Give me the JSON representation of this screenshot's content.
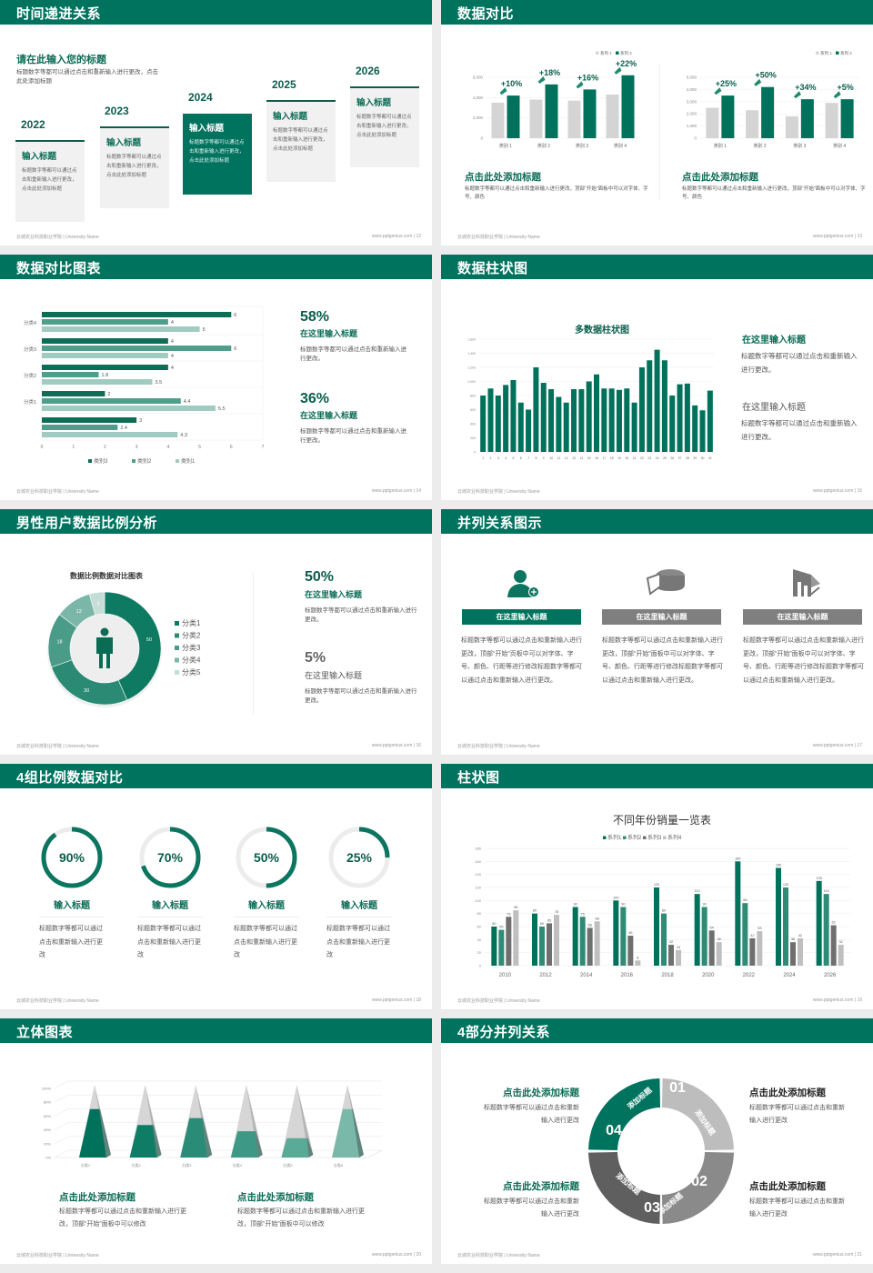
{
  "footer": {
    "left": "云城农业科技职业学院 | University Name",
    "right": "www.pptgenius.com"
  },
  "colors": {
    "brand": "#00735f",
    "dark_green": "#00715a",
    "mid_green": "#2e8b76",
    "light_green": "#8cc4b6",
    "gray": "#d4d4d4",
    "dark_gray": "#6f6f6f"
  },
  "slides": [
    {
      "title": "时间递进关系",
      "page": "12",
      "heading": "请在此输入您的标题",
      "body": "标题数字等都可以通过点击和重新输入进行更改，点击此处添加标题",
      "steps": [
        {
          "year": "2022",
          "title": "输入标题",
          "text": "标题数字等都可以通过点击和重新输入进行更改，点击此处添加标题"
        },
        {
          "year": "2023",
          "title": "输入标题",
          "text": "标题数字等都可以通过点击和重新输入进行更改，点击此处添加标题"
        },
        {
          "year": "2024",
          "title": "输入标题",
          "text": "标题数字等都可以通过点击和重新输入进行更改，点击此处添加标题"
        },
        {
          "year": "2025",
          "title": "输入标题",
          "text": "标题数字等都可以通过点击和重新输入进行更改，点击此处添加标题"
        },
        {
          "year": "2026",
          "title": "输入标题",
          "text": "标题数字等都可以通过点击和重新输入进行更改，点击此处添加标题"
        }
      ]
    },
    {
      "title": "数据对比",
      "page": "13",
      "captions": [
        {
          "title": "点击此处添加标题",
          "text": "标题数字等都可以通过点击和重新输入进行更改，顶部“开始”面板中可以对字体、字号、颜色"
        },
        {
          "title": "点击此处添加标题",
          "text": "标题数字等都可以通过点击和重新输入进行更改，顶部“开始”面板中可以对字体、字号、颜色"
        }
      ]
    },
    {
      "title": "数据对比图表",
      "page": "14",
      "stats": [
        {
          "value": "58%",
          "title": "在这里输入标题",
          "text": "标题数字等都可以通过点击和重新输入进行更改。"
        },
        {
          "value": "36%",
          "title": "在这里输入标题",
          "text": "标题数字等都可以通过点击和重新输入进行更改。"
        }
      ]
    },
    {
      "title": "数据柱状图",
      "page": "15",
      "notes": [
        {
          "title": "在这里输入标题",
          "text": "标题数字等都可以通过点击和重新输入进行更改。"
        },
        {
          "title": "在这里输入标题",
          "text": "标题数字等都可以通过点击和重新输入进行更改。"
        }
      ]
    },
    {
      "title": "男性用户数据比例分析",
      "page": "16",
      "stats": [
        {
          "value": "50%",
          "title": "在这里输入标题",
          "text": "标题数字等都可以通过点击和重新输入进行更改。"
        },
        {
          "value": "5%",
          "title": "在这里输入标题",
          "text": "标题数字等都可以通过点击和重新输入进行更改。"
        }
      ]
    },
    {
      "title": "并列关系图示",
      "page": "17",
      "columns": [
        {
          "icon": "female-user-add-icon",
          "title": "在这里输入标题",
          "text": "标题数字等都可以通过点击和重新输入进行更改，顶部“开始”页板中可以对字体、字号、颜色、行距等进行修改标题数字等都可以通过点击和重新输入进行更改。"
        },
        {
          "icon": "pie-3d-icon",
          "title": "在这里输入标题",
          "text": "标题数字等都可以通过点击和重新输入进行更改，顶部“开始”面板中可以对字体、字号、颜色、行距等进行修改标题数字等都可以通过点击和重新输入进行更改。"
        },
        {
          "icon": "building-chart-icon",
          "title": "在这里输入标题",
          "text": "标题数字等都可以通过点击和重新输入进行更改，顶部“开始”面板中可以对字体、字号、颜色、行距等进行修改标题数字等都可以通过点击和重新输入进行更改。"
        }
      ]
    },
    {
      "title": "4组比例数据对比",
      "page": "18",
      "items": [
        {
          "title": "输入标题",
          "text": "标题数字等都可以通过点击和重新输入进行更改"
        },
        {
          "title": "输入标题",
          "text": "标题数字等都可以通过点击和重新输入进行更改"
        },
        {
          "title": "输入标题",
          "text": "标题数字等都可以通过点击和重新输入进行更改"
        },
        {
          "title": "输入标题",
          "text": "标题数字等都可以通过点击和重新输入进行更改"
        }
      ]
    },
    {
      "title": "柱状图",
      "page": "19"
    },
    {
      "title": "立体图表",
      "page": "20",
      "captions": [
        {
          "title": "点击此处添加标题",
          "text": "标题数字等都可以通过点击和重新输入进行更改，顶部“开始”面板中可以修改"
        },
        {
          "title": "点击此处添加标题",
          "text": "标题数字等都可以通过点击和重新输入进行更改，顶部“开始”面板中可以修改"
        }
      ]
    },
    {
      "title": "4部分并列关系",
      "page": "21",
      "segments": [
        {
          "num": "01",
          "label": "添加标题"
        },
        {
          "num": "02",
          "label": "添加标题"
        },
        {
          "num": "03",
          "label": "添加标题"
        },
        {
          "num": "04",
          "label": "添加标题"
        }
      ],
      "blocks": [
        {
          "title": "点击此处添加标题",
          "text": "标题数字等都可以通过点击和重新输入进行更改"
        },
        {
          "title": "点击此处添加标题",
          "text": "标题数字等都可以通过点击和重新输入进行更改"
        },
        {
          "title": "点击此处添加标题",
          "text": "标题数字等都可以通过点击和重新输入进行更改"
        },
        {
          "title": "点击此处添加标题",
          "text": "标题数字等都可以通过点击和重新输入进行更改"
        }
      ]
    }
  ],
  "chart_data": [
    {
      "type": "bar",
      "categories": [
        "类别 1",
        "类别 2",
        "类别 3",
        "类别 4"
      ],
      "series": [
        {
          "name": "系列 1",
          "values": [
            3500,
            3800,
            3700,
            4300
          ],
          "color": "#d4d4d4"
        },
        {
          "name": "系列 2",
          "values": [
            4200,
            5300,
            4800,
            6200
          ],
          "color": "#00715a"
        }
      ],
      "annotations": [
        "+10%",
        "+18%",
        "+16%",
        "+22%"
      ],
      "ylim": [
        0,
        6000
      ],
      "yticks": [
        0,
        2000,
        4000,
        6000
      ],
      "ytick_labels": [
        "0",
        "2,000",
        "4,000",
        "6,000"
      ],
      "legend": "top-right"
    },
    {
      "type": "bar",
      "categories": [
        "类别 1",
        "类别 2",
        "类别 3",
        "类别 4"
      ],
      "series": [
        {
          "name": "系列 1",
          "values": [
            2500,
            2300,
            1800,
            2900
          ],
          "color": "#d4d4d4"
        },
        {
          "name": "系列 2",
          "values": [
            3500,
            4200,
            3200,
            3200
          ],
          "color": "#00715a"
        }
      ],
      "annotations": [
        "+25%",
        "+50%",
        "+34%",
        "+5%"
      ],
      "ylim": [
        0,
        5000
      ],
      "yticks": [
        0,
        1000,
        2000,
        3000,
        4000,
        5000
      ],
      "ytick_labels": [
        "0",
        "1,000",
        "2,000",
        "3,000",
        "4,000",
        "5,000"
      ],
      "legend": "top-right"
    },
    {
      "type": "bar",
      "orientation": "horizontal",
      "categories": [
        "分类4",
        "分类3",
        "分类2",
        "分类1",
        ""
      ],
      "series": [
        {
          "name": "类别3",
          "values": [
            6,
            4,
            4,
            2,
            3
          ],
          "color": "#0d6e57"
        },
        {
          "name": "类别2",
          "values": [
            4,
            6,
            1.8,
            4.4,
            2.4
          ],
          "color": "#4e9e8b"
        },
        {
          "name": "类别1",
          "values": [
            5,
            4,
            3.5,
            5.5,
            4.3
          ],
          "color": "#9fcbc0"
        }
      ],
      "xlim": [
        0,
        7
      ],
      "xticks": [
        0,
        1,
        2,
        3,
        4,
        5,
        6,
        7
      ],
      "legend": "bottom"
    },
    {
      "type": "bar",
      "title": "多数据柱状图",
      "categories": [
        "1",
        "2",
        "3",
        "4",
        "5",
        "6",
        "7",
        "8",
        "9",
        "10",
        "11",
        "12",
        "13",
        "14",
        "15",
        "16",
        "17",
        "18",
        "19",
        "20",
        "21",
        "22",
        "23",
        "24",
        "25",
        "26",
        "27",
        "28",
        "29",
        "30",
        "31"
      ],
      "series": [
        {
          "values": [
            800,
            900,
            800,
            950,
            1020,
            700,
            600,
            1200,
            980,
            890,
            780,
            700,
            890,
            890,
            1000,
            1100,
            900,
            900,
            880,
            900,
            700,
            1200,
            1300,
            1450,
            1300,
            800,
            960,
            970,
            660,
            590,
            870
          ],
          "color": "#00715a"
        }
      ],
      "ylim": [
        0,
        1600
      ],
      "yticks": [
        0,
        200,
        400,
        600,
        800,
        1000,
        1200,
        1400,
        1600
      ],
      "ytick_labels": [
        "0",
        "200",
        "400",
        "600",
        "800",
        "1,000",
        "1,200",
        "1,400",
        "1,600"
      ]
    },
    {
      "type": "pie",
      "variant": "donut",
      "title": "数据比例数据对比图表",
      "labels": [
        "分类1",
        "分类2",
        "分类3",
        "分类4",
        "分类5"
      ],
      "values": [
        50,
        30,
        18,
        12,
        5
      ],
      "colors": [
        "#0e7a62",
        "#2a8a74",
        "#4a9c89",
        "#7ab7a8",
        "#c4ded7"
      ],
      "legend": "right"
    },
    {
      "type": "pie",
      "variant": "progress-rings",
      "labels": [
        "90%",
        "70%",
        "50%",
        "25%"
      ],
      "values": [
        90,
        70,
        50,
        25
      ]
    },
    {
      "type": "bar",
      "title": "不同年份销量一览表",
      "categories": [
        "2010",
        "2012",
        "2014",
        "2016",
        "2018",
        "2020",
        "2022",
        "2024",
        "2026"
      ],
      "series": [
        {
          "name": "系列1",
          "values": [
            60,
            80,
            90,
            100,
            120,
            110,
            160,
            150,
            130
          ],
          "color": "#00715a"
        },
        {
          "name": "系列2",
          "values": [
            55,
            60,
            75,
            90,
            80,
            90,
            96,
            120,
            110
          ],
          "color": "#2e8b76"
        },
        {
          "name": "系列3",
          "values": [
            75,
            65,
            58,
            46,
            32,
            54,
            42,
            36,
            62
          ],
          "color": "#6f6f6f"
        },
        {
          "name": "系列4",
          "values": [
            85,
            78,
            68,
            8,
            24,
            36,
            53,
            42,
            32
          ],
          "color": "#bfbfbf"
        }
      ],
      "ylim": [
        0,
        180
      ],
      "yticks": [
        0,
        20,
        40,
        60,
        80,
        100,
        120,
        140,
        160,
        180
      ],
      "legend": "top",
      "data_labels": true
    },
    {
      "type": "bar",
      "variant": "3d-pyramid",
      "categories": [
        "分类1",
        "分类2",
        "分类3",
        "分类4",
        "分类5",
        "分类6"
      ],
      "values": [
        70,
        47,
        57,
        38,
        28,
        70
      ],
      "colors": [
        "#00715a",
        "#0f7d66",
        "#2a8c77",
        "#3d9985",
        "#5aaa98",
        "#7ab9aa"
      ],
      "ylim": [
        0,
        100
      ],
      "yticks": [
        0,
        20,
        40,
        60,
        80,
        100
      ],
      "ytick_labels": [
        "0%",
        "20%",
        "40%",
        "60%",
        "80%",
        "100%"
      ]
    }
  ]
}
